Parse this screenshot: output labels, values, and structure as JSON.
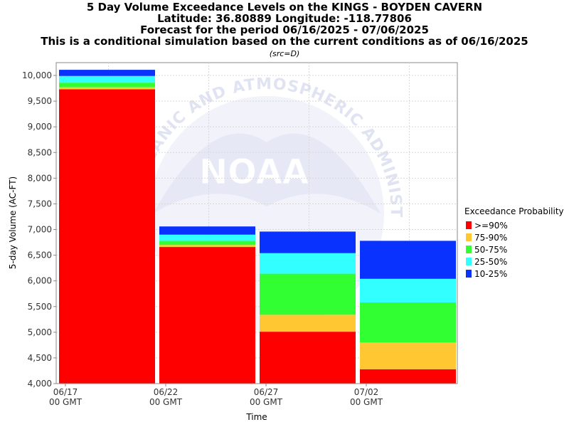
{
  "chart_data": {
    "type": "bar",
    "stacked": true,
    "title_lines": [
      "5 Day Volume Exceedance Levels on the KINGS - BOYDEN CAVERN",
      "Latitude: 36.80889 Longitude: -118.77806",
      "Forecast for the period 06/16/2025 - 07/06/2025",
      "This is a conditional simulation based on the current conditions as of 06/16/2025"
    ],
    "subtitle": "(src=D)",
    "xlabel": "Time",
    "ylabel": "5-day Volume (AC-FT)",
    "ylim": [
      4000,
      10250
    ],
    "y_ticks": [
      4000,
      4500,
      5000,
      5500,
      6000,
      6500,
      7000,
      7500,
      8000,
      8500,
      9000,
      9500,
      10000
    ],
    "y_tick_labels": [
      "4,000",
      "4,500",
      "5,000",
      "5,500",
      "6,000",
      "6,500",
      "7,000",
      "7,500",
      "8,000",
      "8,500",
      "9,000",
      "9,500",
      "10,000"
    ],
    "x_ticks": [
      {
        "line1": "06/17",
        "line2": "00 GMT"
      },
      {
        "line1": "06/22",
        "line2": "00 GMT"
      },
      {
        "line1": "06/27",
        "line2": "00 GMT"
      },
      {
        "line1": "07/02",
        "line2": "00 GMT"
      }
    ],
    "grid": true,
    "legend_position": "right",
    "legend_title": "Exceedance Probability",
    "series": [
      {
        "name": ">=90%",
        "color": "#ff0000"
      },
      {
        "name": "75-90%",
        "color": "#ffc832"
      },
      {
        "name": "50-75%",
        "color": "#32ff32"
      },
      {
        "name": "25-50%",
        "color": "#32ffff"
      },
      {
        "name": "10-25%",
        "color": "#0a32ff"
      }
    ],
    "bars": [
      {
        "period_start": "06/17",
        "levels": [
          9730,
          9770,
          9860,
          9990,
          10110
        ]
      },
      {
        "period_start": "06/22",
        "levels": [
          6660,
          6700,
          6780,
          6900,
          7060
        ]
      },
      {
        "period_start": "06/27",
        "levels": [
          5010,
          5340,
          6140,
          6540,
          6960
        ]
      },
      {
        "period_start": "07/02",
        "levels": [
          4280,
          4800,
          5580,
          6040,
          6780
        ]
      }
    ]
  },
  "watermark": {
    "logo_text": "NOAA",
    "arc_text": "NATIONAL OCEANIC AND ATMOSPHERIC ADMINISTRATION"
  }
}
